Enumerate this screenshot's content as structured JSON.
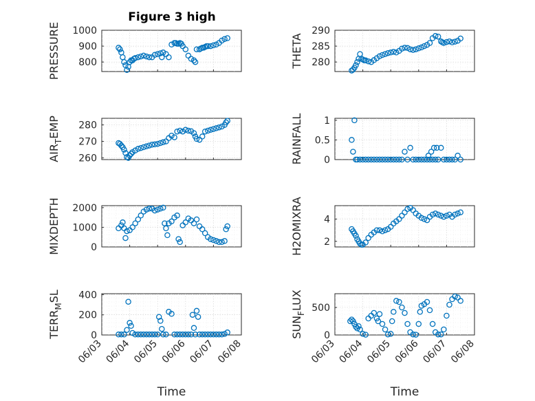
{
  "figure": {
    "title": "Figure 3 high",
    "x_tick_labels": [
      "06/03",
      "06/04",
      "06/05",
      "06/06",
      "06/07",
      "06/08"
    ],
    "marker_color": "#0072BD",
    "axis_color": "#262626",
    "grid_color": "#d0d0d0"
  },
  "chart_data": [
    {
      "type": "scatter",
      "name": "PRESSURE",
      "ylabel": "PRESSURE",
      "ylabel_sub": null,
      "xlabel": "",
      "title": "Figure 3 high",
      "xlim": [
        0,
        5
      ],
      "ylim": [
        740,
        1000
      ],
      "yticks": [
        800,
        900,
        1000
      ],
      "ytick_labels": [
        "800",
        "900",
        "1000"
      ],
      "x": [
        0.6,
        0.65,
        0.7,
        0.75,
        0.8,
        0.85,
        0.9,
        0.95,
        1.0,
        1.05,
        1.1,
        1.15,
        1.2,
        1.3,
        1.4,
        1.5,
        1.6,
        1.7,
        1.8,
        1.9,
        2.0,
        2.1,
        2.15,
        2.2,
        2.3,
        2.4,
        2.5,
        2.6,
        2.65,
        2.7,
        2.75,
        2.8,
        2.85,
        2.9,
        3.0,
        3.1,
        3.2,
        3.3,
        3.35,
        3.4,
        3.5,
        3.55,
        3.6,
        3.65,
        3.7,
        3.75,
        3.8,
        3.9,
        4.0,
        4.1,
        4.2,
        4.3,
        4.4,
        4.5
      ],
      "y": [
        890,
        880,
        860,
        830,
        800,
        780,
        750,
        770,
        800,
        810,
        810,
        820,
        825,
        830,
        835,
        840,
        835,
        830,
        830,
        845,
        850,
        855,
        830,
        860,
        850,
        830,
        910,
        920,
        920,
        915,
        915,
        920,
        915,
        900,
        880,
        840,
        820,
        810,
        800,
        880,
        880,
        885,
        890,
        890,
        895,
        900,
        900,
        900,
        905,
        910,
        920,
        935,
        945,
        950
      ]
    },
    {
      "type": "scatter",
      "name": "THETA",
      "ylabel": "THETA",
      "ylabel_sub": null,
      "xlabel": "",
      "xlim": [
        0,
        5
      ],
      "ylim": [
        277,
        290
      ],
      "yticks": [
        280,
        285,
        290
      ],
      "ytick_labels": [
        "280",
        "285",
        "290"
      ],
      "x": [
        0.6,
        0.65,
        0.7,
        0.75,
        0.8,
        0.85,
        0.9,
        0.95,
        1.0,
        1.05,
        1.1,
        1.2,
        1.3,
        1.4,
        1.5,
        1.6,
        1.7,
        1.8,
        1.9,
        2.0,
        2.1,
        2.2,
        2.3,
        2.4,
        2.5,
        2.6,
        2.7,
        2.8,
        2.9,
        3.0,
        3.1,
        3.2,
        3.3,
        3.4,
        3.5,
        3.6,
        3.7,
        3.8,
        3.85,
        3.9,
        4.0,
        4.1,
        4.2,
        4.3,
        4.4,
        4.5
      ],
      "y": [
        277.3,
        277.6,
        278.2,
        279.0,
        280.0,
        281.0,
        282.5,
        281.0,
        280.8,
        280.5,
        280.5,
        280.2,
        280.0,
        280.6,
        281.2,
        281.8,
        282.2,
        282.5,
        282.8,
        283.0,
        283.2,
        283.0,
        283.5,
        284.2,
        284.5,
        284.4,
        284.0,
        283.8,
        284.0,
        284.3,
        284.6,
        285.0,
        285.4,
        286.0,
        287.5,
        288.2,
        288.0,
        286.5,
        286.2,
        286.0,
        286.3,
        286.5,
        286.2,
        286.4,
        286.7,
        287.4
      ]
    },
    {
      "type": "scatter",
      "name": "AIR_TEMP",
      "ylabel": "AIR",
      "ylabel_sub": "T",
      "ylabel_tail": "EMP",
      "xlabel": "",
      "xlim": [
        0,
        5
      ],
      "ylim": [
        259,
        284
      ],
      "yticks": [
        260,
        270,
        280
      ],
      "ytick_labels": [
        "260",
        "270",
        "280"
      ],
      "x": [
        0.6,
        0.65,
        0.7,
        0.75,
        0.8,
        0.85,
        0.9,
        0.95,
        1.0,
        1.05,
        1.1,
        1.2,
        1.3,
        1.4,
        1.5,
        1.6,
        1.7,
        1.8,
        1.9,
        2.0,
        2.1,
        2.2,
        2.3,
        2.4,
        2.5,
        2.6,
        2.7,
        2.8,
        2.9,
        3.0,
        3.1,
        3.2,
        3.3,
        3.35,
        3.4,
        3.5,
        3.6,
        3.7,
        3.8,
        3.9,
        4.0,
        4.1,
        4.2,
        4.3,
        4.4,
        4.45,
        4.5
      ],
      "y": [
        269,
        268.5,
        267.5,
        266.5,
        265,
        263,
        260.5,
        260,
        261.5,
        262.5,
        263.5,
        264.5,
        265.5,
        266,
        266.5,
        267,
        267.5,
        268,
        268.2,
        268.5,
        269,
        269.5,
        270,
        272,
        273.5,
        272.5,
        276,
        276.5,
        276,
        277,
        276.5,
        276.2,
        275,
        273,
        271.5,
        271,
        273,
        276,
        276.5,
        277,
        277.5,
        278,
        278.5,
        279,
        280,
        281.5,
        282.5
      ]
    },
    {
      "type": "scatter",
      "name": "RAINFALL",
      "ylabel": "RAINFALL",
      "ylabel_sub": null,
      "xlabel": "",
      "xlim": [
        0,
        5
      ],
      "ylim": [
        0,
        1.05
      ],
      "yticks": [
        0,
        0.5,
        1
      ],
      "ytick_labels": [
        "0",
        "0.5",
        "1"
      ],
      "x": [
        0.6,
        0.65,
        0.7,
        0.75,
        0.8,
        0.9,
        1.0,
        1.1,
        1.2,
        1.3,
        1.4,
        1.5,
        1.6,
        1.7,
        1.8,
        1.9,
        2.0,
        2.1,
        2.2,
        2.3,
        2.4,
        2.5,
        2.6,
        2.7,
        2.8,
        2.9,
        3.0,
        3.1,
        3.2,
        3.3,
        3.35,
        3.4,
        3.45,
        3.5,
        3.55,
        3.6,
        3.65,
        3.7,
        3.8,
        3.9,
        4.0,
        4.1,
        4.2,
        4.3,
        4.4,
        4.5
      ],
      "y": [
        0.5,
        0.2,
        1.0,
        0.0,
        0.0,
        0.0,
        0.0,
        0.0,
        0.0,
        0.0,
        0.0,
        0.0,
        0.0,
        0.0,
        0.0,
        0.0,
        0.0,
        0.0,
        0.0,
        0.0,
        0.0,
        0.2,
        0.0,
        0.3,
        0.0,
        0.0,
        0.0,
        0.0,
        0.0,
        0.0,
        0.1,
        0.0,
        0.2,
        0.0,
        0.3,
        0.0,
        0.3,
        0.0,
        0.3,
        0.0,
        0.0,
        0.0,
        0.0,
        0.0,
        0.1,
        0.0
      ]
    },
    {
      "type": "scatter",
      "name": "MIXDEPTH",
      "ylabel": "MIXDEPTH",
      "ylabel_sub": null,
      "xlabel": "",
      "xlim": [
        0,
        5
      ],
      "ylim": [
        0,
        2100
      ],
      "yticks": [
        0,
        1000,
        2000
      ],
      "ytick_labels": [
        "0",
        "1000",
        "2000"
      ],
      "x": [
        0.6,
        0.7,
        0.75,
        0.8,
        0.85,
        0.9,
        1.0,
        1.1,
        1.2,
        1.3,
        1.4,
        1.5,
        1.6,
        1.7,
        1.8,
        1.9,
        2.0,
        2.1,
        2.2,
        2.25,
        2.3,
        2.35,
        2.4,
        2.5,
        2.6,
        2.7,
        2.75,
        2.8,
        2.9,
        3.0,
        3.1,
        3.2,
        3.3,
        3.4,
        3.5,
        3.6,
        3.7,
        3.8,
        3.9,
        4.0,
        4.1,
        4.2,
        4.3,
        4.4,
        4.45,
        4.5
      ],
      "y": [
        950,
        1100,
        1250,
        950,
        450,
        800,
        850,
        1000,
        1200,
        1400,
        1600,
        1800,
        1900,
        1950,
        1950,
        1850,
        1900,
        1950,
        2000,
        1200,
        950,
        600,
        1200,
        1300,
        1500,
        1600,
        400,
        250,
        1100,
        1250,
        1450,
        1350,
        1200,
        1400,
        1050,
        900,
        700,
        500,
        400,
        350,
        300,
        250,
        250,
        300,
        900,
        1050
      ]
    },
    {
      "type": "scatter",
      "name": "H2OMIXRA",
      "ylabel": "H2OMIXRA",
      "ylabel_sub": null,
      "xlabel": "",
      "xlim": [
        0,
        5
      ],
      "ylim": [
        1.5,
        5.2
      ],
      "yticks": [
        2,
        4
      ],
      "ytick_labels": [
        "2",
        "4"
      ],
      "x": [
        0.6,
        0.65,
        0.7,
        0.75,
        0.8,
        0.85,
        0.9,
        0.95,
        1.0,
        1.1,
        1.2,
        1.3,
        1.4,
        1.5,
        1.6,
        1.7,
        1.8,
        1.9,
        2.0,
        2.1,
        2.2,
        2.3,
        2.4,
        2.5,
        2.6,
        2.7,
        2.8,
        2.9,
        3.0,
        3.1,
        3.2,
        3.3,
        3.4,
        3.5,
        3.6,
        3.7,
        3.8,
        3.9,
        4.0,
        4.1,
        4.2,
        4.3,
        4.4,
        4.5
      ],
      "y": [
        3.1,
        2.9,
        2.7,
        2.5,
        2.2,
        2.0,
        1.8,
        1.7,
        1.7,
        1.9,
        2.3,
        2.6,
        2.8,
        3.0,
        3.0,
        2.9,
        3.0,
        3.1,
        3.3,
        3.6,
        3.8,
        4.0,
        4.3,
        4.6,
        4.9,
        5.0,
        4.8,
        4.5,
        4.3,
        4.1,
        4.0,
        3.9,
        4.2,
        4.4,
        4.5,
        4.4,
        4.3,
        4.2,
        4.3,
        4.4,
        4.2,
        4.4,
        4.5,
        4.6
      ]
    },
    {
      "type": "scatter",
      "name": "TERR_MSL",
      "ylabel": "TERR",
      "ylabel_sub": "M",
      "ylabel_tail": "SL",
      "xlabel": "Time",
      "xlim": [
        0,
        5
      ],
      "ylim": [
        0,
        410
      ],
      "yticks": [
        0,
        200,
        400
      ],
      "ytick_labels": [
        "0",
        "200",
        "400"
      ],
      "x": [
        0.6,
        0.7,
        0.8,
        0.9,
        0.95,
        1.0,
        1.05,
        1.1,
        1.2,
        1.3,
        1.4,
        1.5,
        1.6,
        1.7,
        1.8,
        1.9,
        2.0,
        2.05,
        2.1,
        2.15,
        2.2,
        2.3,
        2.4,
        2.5,
        2.6,
        2.7,
        2.8,
        2.9,
        3.0,
        3.1,
        3.2,
        3.25,
        3.3,
        3.35,
        3.4,
        3.45,
        3.5,
        3.6,
        3.7,
        3.8,
        3.9,
        4.0,
        4.1,
        4.2,
        4.3,
        4.4,
        4.5
      ],
      "y": [
        5,
        5,
        5,
        50,
        330,
        120,
        90,
        20,
        5,
        5,
        5,
        5,
        5,
        5,
        5,
        5,
        5,
        180,
        140,
        60,
        5,
        5,
        230,
        210,
        5,
        5,
        5,
        5,
        5,
        5,
        5,
        200,
        70,
        5,
        240,
        180,
        5,
        5,
        5,
        5,
        5,
        5,
        5,
        5,
        5,
        10,
        25
      ]
    },
    {
      "type": "scatter",
      "name": "SUN_FLUX",
      "ylabel": "SUN",
      "ylabel_sub": "F",
      "ylabel_tail": "LUX",
      "xlabel": "Time",
      "xlim": [
        0,
        5
      ],
      "ylim": [
        0,
        750
      ],
      "yticks": [
        0,
        500
      ],
      "ytick_labels": [
        "0",
        "500"
      ],
      "x": [
        0.55,
        0.6,
        0.65,
        0.7,
        0.75,
        0.8,
        0.85,
        0.9,
        1.0,
        1.1,
        1.2,
        1.3,
        1.4,
        1.5,
        1.55,
        1.6,
        1.7,
        1.8,
        1.9,
        2.0,
        2.05,
        2.1,
        2.2,
        2.3,
        2.4,
        2.5,
        2.6,
        2.7,
        2.8,
        2.9,
        3.0,
        3.05,
        3.1,
        3.2,
        3.3,
        3.4,
        3.5,
        3.6,
        3.7,
        3.8,
        3.9,
        4.0,
        4.1,
        4.2,
        4.3,
        4.4,
        4.5
      ],
      "y": [
        250,
        280,
        250,
        200,
        150,
        120,
        160,
        100,
        20,
        5,
        300,
        350,
        400,
        300,
        250,
        380,
        200,
        100,
        10,
        20,
        250,
        420,
        620,
        600,
        500,
        400,
        200,
        50,
        10,
        5,
        200,
        420,
        530,
        560,
        600,
        450,
        200,
        50,
        10,
        10,
        100,
        350,
        550,
        650,
        700,
        680,
        620
      ]
    }
  ]
}
